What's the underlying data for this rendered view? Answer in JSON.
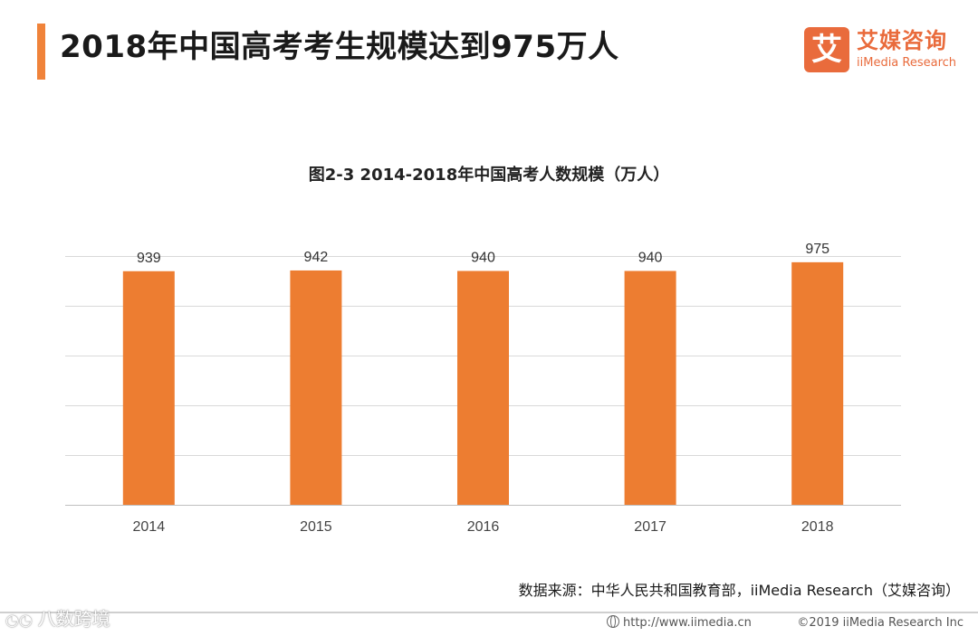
{
  "header": {
    "title": "2018年中国高考考生规模达到975万人"
  },
  "logo": {
    "mark": "艾",
    "name_cn": "艾媒咨询",
    "name_en": "iiMedia Research"
  },
  "chart_data": {
    "type": "bar",
    "title": "图2-3 2014-2018年中国高考人数规模（万人）",
    "categories": [
      "2014",
      "2015",
      "2016",
      "2017",
      "2018"
    ],
    "values": [
      939,
      942,
      940,
      940,
      975
    ],
    "xlabel": "",
    "ylabel": "",
    "ylim": [
      0,
      1000
    ],
    "grid": true,
    "legend": "none",
    "data_labels": true,
    "bar_color": "#ed7d31"
  },
  "source": {
    "text": "数据来源：中华人民共和国教育部，iiMedia Research（艾媒咨询）"
  },
  "footer": {
    "url": "http://www.iimedia.cn",
    "copyright": "©2019 iiMedia Research Inc"
  },
  "watermark": {
    "text": "八数跨境"
  },
  "colors": {
    "accent": "#f0833a",
    "brand": "#e96b3c",
    "bar": "#ed7d31",
    "grid": "#d9d9d9"
  }
}
